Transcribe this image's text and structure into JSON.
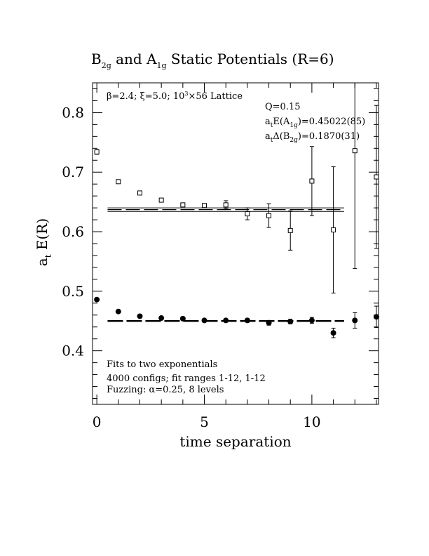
{
  "chart_data": {
    "type": "scatter",
    "title": {
      "parts": [
        "B",
        "2g",
        " and A",
        "1g",
        " Static Potentials (R=6)"
      ]
    },
    "xlabel": "time separation",
    "ylabel": {
      "main": "a",
      "sub": "t",
      "rest": " E(R)"
    },
    "xlim": [
      -0.2,
      13.1
    ],
    "ylim": [
      0.31,
      0.85
    ],
    "x_ticks": [
      0,
      5,
      10
    ],
    "y_ticks": [
      0.4,
      0.5,
      0.6,
      0.7,
      0.8
    ],
    "x_tick_labels": [
      "0",
      "5",
      "10"
    ],
    "y_tick_labels": [
      "0.4",
      "0.5",
      "0.6",
      "0.7",
      "0.8"
    ],
    "grid": false,
    "series": [
      {
        "marker": "open-square",
        "points": [
          {
            "x": 0,
            "y": 0.734,
            "err": 0.004
          },
          {
            "x": 1,
            "y": 0.684,
            "err": 0.002
          },
          {
            "x": 2,
            "y": 0.665,
            "err": 0.002
          },
          {
            "x": 3,
            "y": 0.653,
            "err": 0.002
          },
          {
            "x": 4,
            "y": 0.645,
            "err": 0.003
          },
          {
            "x": 5,
            "y": 0.644,
            "err": 0.003
          },
          {
            "x": 6,
            "y": 0.645,
            "err": 0.007
          },
          {
            "x": 7,
            "y": 0.63,
            "err": 0.01
          },
          {
            "x": 8,
            "y": 0.627,
            "err": 0.02
          },
          {
            "x": 9,
            "y": 0.602,
            "err": 0.033
          },
          {
            "x": 10,
            "y": 0.685,
            "err": 0.058
          },
          {
            "x": 11,
            "y": 0.603,
            "err": 0.106
          },
          {
            "x": 12,
            "y": 0.736,
            "err": 0.198
          },
          {
            "x": 13,
            "y": 0.692,
            "err": 0.12
          }
        ],
        "fit": {
          "x_range": [
            0.5,
            11.5
          ],
          "value": 0.637,
          "band": 0.003
        }
      },
      {
        "marker": "filled-circle",
        "points": [
          {
            "x": 0,
            "y": 0.486,
            "err": 0.002
          },
          {
            "x": 1,
            "y": 0.466,
            "err": 0.002
          },
          {
            "x": 2,
            "y": 0.458,
            "err": 0.002
          },
          {
            "x": 3,
            "y": 0.455,
            "err": 0.002
          },
          {
            "x": 4,
            "y": 0.454,
            "err": 0.002
          },
          {
            "x": 5,
            "y": 0.451,
            "err": 0.002
          },
          {
            "x": 6,
            "y": 0.451,
            "err": 0.002
          },
          {
            "x": 7,
            "y": 0.451,
            "err": 0.003
          },
          {
            "x": 8,
            "y": 0.447,
            "err": 0.004
          },
          {
            "x": 9,
            "y": 0.449,
            "err": 0.004
          },
          {
            "x": 10,
            "y": 0.451,
            "err": 0.005
          },
          {
            "x": 11,
            "y": 0.43,
            "err": 0.008
          },
          {
            "x": 12,
            "y": 0.451,
            "err": 0.013
          },
          {
            "x": 13,
            "y": 0.457,
            "err": 0.018
          }
        ],
        "fit": {
          "x_range": [
            0.5,
            11.5
          ],
          "value": 0.45,
          "band": 0.0008
        }
      }
    ],
    "annotations_top_left": {
      "parts": [
        "β=2.4; ξ=5.0; 10",
        "3",
        "×56 Lattice"
      ]
    },
    "annotations_top_right": {
      "q": "Q=0.15",
      "e_line": [
        "a",
        "t",
        "E(A",
        "1g",
        ")=0.45022(85)"
      ],
      "d_line": [
        "a",
        "t",
        "Δ(B",
        "2g",
        ")=0.1870(31)"
      ]
    },
    "annotations_bottom_left": [
      "Fits to two exponentials",
      "4000 configs; fit ranges 1-12, 1-12",
      "Fuzzing: α=0.25, 8 levels"
    ]
  }
}
